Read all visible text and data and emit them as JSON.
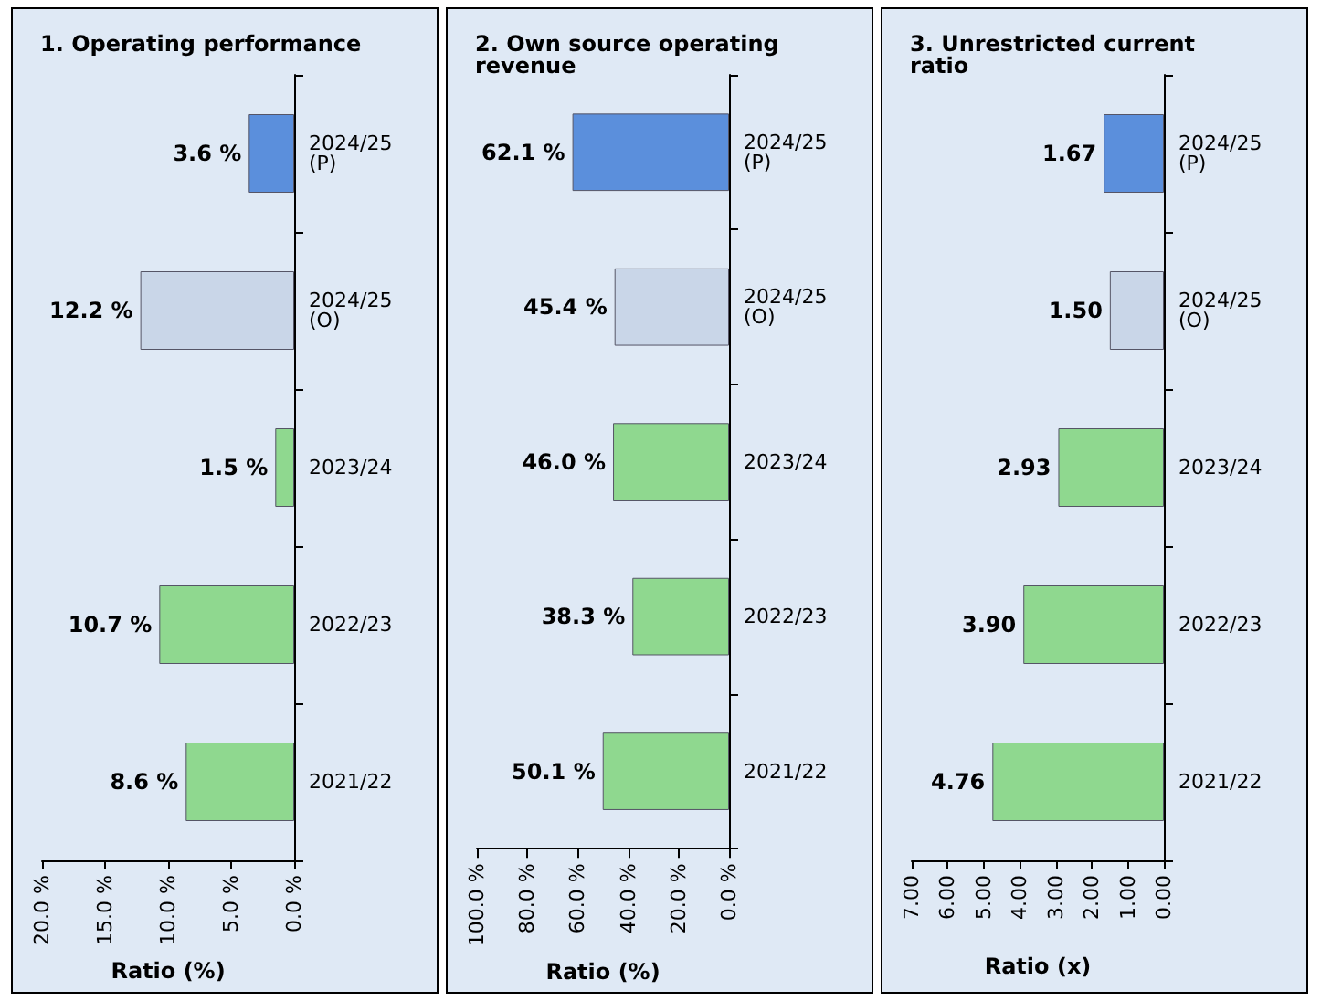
{
  "chart_data": [
    {
      "type": "bar",
      "orientation": "horizontal",
      "title": "1. Operating performance",
      "xlabel": "Ratio (%)",
      "categories": [
        "2024/25 (P)",
        "2024/25 (O)",
        "2023/24",
        "2022/23",
        "2021/22"
      ],
      "values": [
        3.6,
        12.2,
        1.5,
        10.7,
        8.6
      ],
      "value_labels": [
        "3.6 %",
        "12.2 %",
        "1.5 %",
        "10.7 %",
        "8.6 %"
      ],
      "colors": [
        "#5b8fdc",
        "#c9d6e8",
        "#8fd88f",
        "#8fd88f",
        "#8fd88f"
      ],
      "xlim": [
        20,
        0
      ],
      "xticks": [
        {
          "value": 20,
          "label": "20.0 %"
        },
        {
          "value": 15,
          "label": "15.0 %"
        },
        {
          "value": 10,
          "label": "10.0 %"
        },
        {
          "value": 5,
          "label": "5.0 %"
        },
        {
          "value": 0,
          "label": "0.0 %"
        }
      ],
      "grid": false
    },
    {
      "type": "bar",
      "orientation": "horizontal",
      "title": "2. Own source operating revenue",
      "xlabel": "Ratio (%)",
      "categories": [
        "2024/25 (P)",
        "2024/25 (O)",
        "2023/24",
        "2022/23",
        "2021/22"
      ],
      "values": [
        62.1,
        45.4,
        46.0,
        38.3,
        50.1
      ],
      "value_labels": [
        "62.1 %",
        "45.4 %",
        "46.0 %",
        "38.3 %",
        "50.1 %"
      ],
      "colors": [
        "#5b8fdc",
        "#c9d6e8",
        "#8fd88f",
        "#8fd88f",
        "#8fd88f"
      ],
      "xlim": [
        100,
        0
      ],
      "xticks": [
        {
          "value": 100,
          "label": "100.0 %"
        },
        {
          "value": 80,
          "label": "80.0 %"
        },
        {
          "value": 60,
          "label": "60.0 %"
        },
        {
          "value": 40,
          "label": "40.0 %"
        },
        {
          "value": 20,
          "label": "20.0 %"
        },
        {
          "value": 0,
          "label": "0.0 %"
        }
      ],
      "grid": false
    },
    {
      "type": "bar",
      "orientation": "horizontal",
      "title": "3. Unrestricted current ratio",
      "xlabel": "Ratio (x)",
      "categories": [
        "2024/25 (P)",
        "2024/25 (O)",
        "2023/24",
        "2022/23",
        "2021/22"
      ],
      "values": [
        1.67,
        1.5,
        2.93,
        3.9,
        4.76
      ],
      "value_labels": [
        "1.67",
        "1.50",
        "2.93",
        "3.90",
        "4.76"
      ],
      "colors": [
        "#5b8fdc",
        "#c9d6e8",
        "#8fd88f",
        "#8fd88f",
        "#8fd88f"
      ],
      "xlim": [
        7,
        0
      ],
      "xticks": [
        {
          "value": 7,
          "label": "7.00"
        },
        {
          "value": 6,
          "label": "6.00"
        },
        {
          "value": 5,
          "label": "5.00"
        },
        {
          "value": 4,
          "label": "4.00"
        },
        {
          "value": 3,
          "label": "3.00"
        },
        {
          "value": 2,
          "label": "2.00"
        },
        {
          "value": 1,
          "label": "1.00"
        },
        {
          "value": 0,
          "label": "0.00"
        }
      ],
      "grid": false
    }
  ]
}
